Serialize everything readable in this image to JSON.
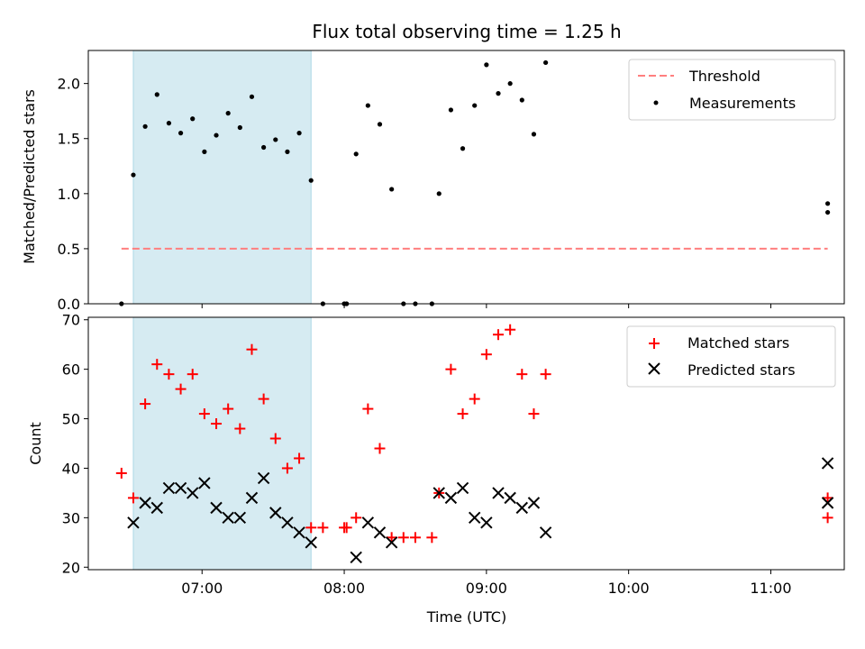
{
  "title": "Flux total observing time = 1.25 h",
  "chart_data": [
    {
      "type": "scatter",
      "ylabel": "Matched/Predicted stars",
      "ylim": [
        0,
        2.3
      ],
      "yticks": [
        0.0,
        0.5,
        1.0,
        1.5,
        2.0
      ],
      "ytick_labels": [
        "0.0",
        "0.5",
        "1.0",
        "1.5",
        "2.0"
      ],
      "shaded_span": [
        "06:31",
        "07:46"
      ],
      "shaded_color": "#add8e6",
      "legend_position": "upper right",
      "threshold": {
        "name": "Threshold",
        "value": 0.5,
        "x_range": [
          "06:26",
          "11:24"
        ],
        "color": "#ff7f7f"
      },
      "measurements": {
        "name": "Measurements",
        "color": "#000000",
        "points": [
          [
            "06:26",
            0.0
          ],
          [
            "06:31",
            1.17
          ],
          [
            "06:36",
            1.61
          ],
          [
            "06:41",
            1.9
          ],
          [
            "06:46",
            1.64
          ],
          [
            "06:51",
            1.55
          ],
          [
            "06:56",
            1.68
          ],
          [
            "07:01",
            1.38
          ],
          [
            "07:06",
            1.53
          ],
          [
            "07:11",
            1.73
          ],
          [
            "07:16",
            1.6
          ],
          [
            "07:21",
            1.88
          ],
          [
            "07:26",
            1.42
          ],
          [
            "07:31",
            1.49
          ],
          [
            "07:36",
            1.38
          ],
          [
            "07:41",
            1.55
          ],
          [
            "07:46",
            1.12
          ],
          [
            "07:51",
            0.0
          ],
          [
            "08:00",
            0.0
          ],
          [
            "08:01",
            0.0
          ],
          [
            "08:05",
            1.36
          ],
          [
            "08:10",
            1.8
          ],
          [
            "08:15",
            1.63
          ],
          [
            "08:20",
            1.04
          ],
          [
            "08:25",
            0.0
          ],
          [
            "08:30",
            0.0
          ],
          [
            "08:37",
            0.0
          ],
          [
            "08:40",
            1.0
          ],
          [
            "08:45",
            1.76
          ],
          [
            "08:50",
            1.41
          ],
          [
            "08:55",
            1.8
          ],
          [
            "09:00",
            2.17
          ],
          [
            "09:05",
            1.91
          ],
          [
            "09:10",
            2.0
          ],
          [
            "09:15",
            1.85
          ],
          [
            "09:20",
            1.54
          ],
          [
            "09:25",
            2.19
          ],
          [
            "11:24",
            0.83
          ],
          [
            "11:24",
            0.91
          ]
        ]
      }
    },
    {
      "type": "scatter",
      "xlabel": "Time (UTC)",
      "ylabel": "Count",
      "ylim": [
        19.5,
        70.5
      ],
      "yticks": [
        20,
        30,
        40,
        50,
        60,
        70
      ],
      "xlim": [
        "06:12",
        "11:31"
      ],
      "xticks": [
        "07:00",
        "08:00",
        "09:00",
        "10:00",
        "11:00"
      ],
      "shaded_span": [
        "06:31",
        "07:46"
      ],
      "shaded_color": "#add8e6",
      "legend_position": "upper right",
      "series": [
        {
          "name": "Matched stars",
          "marker": "plus",
          "color": "#ff0000",
          "points": [
            [
              "06:26",
              39
            ],
            [
              "06:31",
              34
            ],
            [
              "06:36",
              53
            ],
            [
              "06:41",
              61
            ],
            [
              "06:46",
              59
            ],
            [
              "06:51",
              56
            ],
            [
              "06:56",
              59
            ],
            [
              "07:01",
              51
            ],
            [
              "07:06",
              49
            ],
            [
              "07:11",
              52
            ],
            [
              "07:16",
              48
            ],
            [
              "07:21",
              64
            ],
            [
              "07:26",
              54
            ],
            [
              "07:31",
              46
            ],
            [
              "07:36",
              40
            ],
            [
              "07:41",
              42
            ],
            [
              "07:46",
              28
            ],
            [
              "07:51",
              28
            ],
            [
              "08:00",
              28
            ],
            [
              "08:01",
              28
            ],
            [
              "08:05",
              30
            ],
            [
              "08:10",
              52
            ],
            [
              "08:15",
              44
            ],
            [
              "08:20",
              26
            ],
            [
              "08:25",
              26
            ],
            [
              "08:30",
              26
            ],
            [
              "08:37",
              26
            ],
            [
              "08:40",
              35
            ],
            [
              "08:45",
              60
            ],
            [
              "08:50",
              51
            ],
            [
              "08:55",
              54
            ],
            [
              "09:00",
              63
            ],
            [
              "09:05",
              67
            ],
            [
              "09:10",
              68
            ],
            [
              "09:15",
              59
            ],
            [
              "09:20",
              51
            ],
            [
              "09:25",
              59
            ],
            [
              "11:24",
              34
            ],
            [
              "11:24",
              30
            ]
          ]
        },
        {
          "name": "Predicted stars",
          "marker": "x",
          "color": "#000000",
          "points": [
            [
              "06:31",
              29
            ],
            [
              "06:36",
              33
            ],
            [
              "06:41",
              32
            ],
            [
              "06:46",
              36
            ],
            [
              "06:51",
              36
            ],
            [
              "06:56",
              35
            ],
            [
              "07:01",
              37
            ],
            [
              "07:06",
              32
            ],
            [
              "07:11",
              30
            ],
            [
              "07:16",
              30
            ],
            [
              "07:21",
              34
            ],
            [
              "07:26",
              38
            ],
            [
              "07:31",
              31
            ],
            [
              "07:36",
              29
            ],
            [
              "07:41",
              27
            ],
            [
              "07:46",
              25
            ],
            [
              "08:05",
              22
            ],
            [
              "08:10",
              29
            ],
            [
              "08:15",
              27
            ],
            [
              "08:20",
              25
            ],
            [
              "08:40",
              35
            ],
            [
              "08:45",
              34
            ],
            [
              "08:50",
              36
            ],
            [
              "08:55",
              30
            ],
            [
              "09:00",
              29
            ],
            [
              "09:05",
              35
            ],
            [
              "09:10",
              34
            ],
            [
              "09:15",
              32
            ],
            [
              "09:20",
              33
            ],
            [
              "09:25",
              27
            ],
            [
              "11:24",
              41
            ],
            [
              "11:24",
              33
            ]
          ]
        }
      ]
    }
  ]
}
